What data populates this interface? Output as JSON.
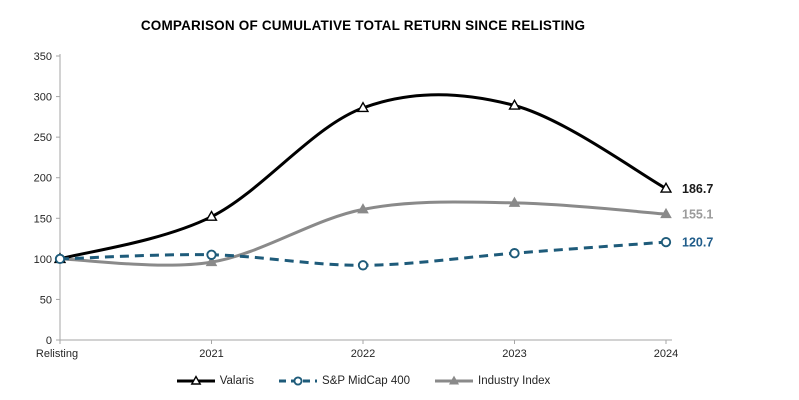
{
  "title": "COMPARISON OF CUMULATIVE TOTAL RETURN SINCE RELISTING",
  "chart_data": {
    "type": "line",
    "title": "COMPARISON OF CUMULATIVE TOTAL RETURN SINCE RELISTING",
    "categories": [
      "Relisting",
      "2021",
      "2022",
      "2023",
      "2024"
    ],
    "series": [
      {
        "name": "Valaris",
        "values": [
          100,
          152,
          286,
          289,
          186.7
        ],
        "color": "#000000",
        "dash": "solid",
        "marker": "open-triangle",
        "end_label": "186.7",
        "end_label_color": "#1a1a1a"
      },
      {
        "name": "S&P MidCap 400",
        "values": [
          100,
          105,
          92,
          107,
          120.7
        ],
        "color": "#1E5B7A",
        "dash": "dashed",
        "marker": "open-circle",
        "end_label": "120.7",
        "end_label_color": "#1F5C8A"
      },
      {
        "name": "Industry Index",
        "values": [
          100,
          96,
          161,
          169,
          155.1
        ],
        "color": "#8A8A8A",
        "dash": "solid",
        "marker": "filled-triangle",
        "end_label": "155.1",
        "end_label_color": "#9B9B9B"
      }
    ],
    "y_ticks": [
      0,
      50,
      100,
      150,
      200,
      250,
      300,
      350
    ],
    "ylim": [
      0,
      350
    ],
    "grid": false,
    "legend_position": "bottom",
    "smoothed": true,
    "axis_color": "#A6A6A6"
  }
}
